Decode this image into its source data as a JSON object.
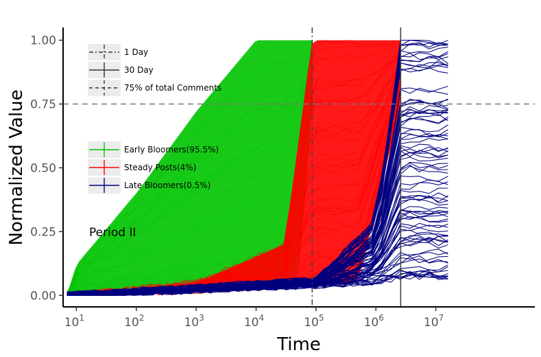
{
  "chart_data": {
    "type": "line",
    "title": "",
    "xlabel": "Time",
    "ylabel": "Normalized Value",
    "x_scale": "log",
    "xlim": [
      6,
      450000000
    ],
    "ylim": [
      -0.045,
      1.05
    ],
    "x_ticks": [
      {
        "value": 10,
        "base": "10",
        "exp": "1"
      },
      {
        "value": 100,
        "base": "10",
        "exp": "2"
      },
      {
        "value": 1000,
        "base": "10",
        "exp": "3"
      },
      {
        "value": 10000,
        "base": "10",
        "exp": "4"
      },
      {
        "value": 100000,
        "base": "10",
        "exp": "5"
      },
      {
        "value": 1000000,
        "base": "10",
        "exp": "6"
      },
      {
        "value": 10000000,
        "base": "10",
        "exp": "7"
      }
    ],
    "y_ticks": [
      {
        "value": 0,
        "label": "0.00"
      },
      {
        "value": 0.25,
        "label": "0.25"
      },
      {
        "value": 0.5,
        "label": "0.50"
      },
      {
        "value": 0.75,
        "label": "0.75"
      },
      {
        "value": 1,
        "label": "1.00"
      }
    ],
    "grid": false,
    "annotation": "Period II",
    "reference_lines": [
      {
        "orientation": "vertical",
        "x": 86400,
        "style": "dashdot",
        "label": "1 Day"
      },
      {
        "orientation": "vertical",
        "x": 2592000,
        "style": "solid",
        "label": "30 Day"
      },
      {
        "orientation": "horizontal",
        "y": 0.75,
        "style": "dashed",
        "label": "75% of total Comments"
      }
    ],
    "series": [
      {
        "name": "Early Bloomers(95.5%)",
        "color": "#00c400",
        "x": [
          7,
          10,
          100,
          1000,
          10000,
          50000,
          86400
        ],
        "y_lower": [
          0,
          0.01,
          0.02,
          0.03,
          0.04,
          0.05,
          0.75
        ],
        "y_upper": [
          0,
          0.12,
          0.4,
          0.72,
          1.0,
          1.0,
          1.0
        ]
      },
      {
        "name": "Steady Posts(4%)",
        "color": "#ff0000",
        "x": [
          7,
          1000,
          30000,
          86400,
          500000,
          2592000
        ],
        "y_lower": [
          0,
          0.02,
          0.035,
          0.04,
          0.05,
          0.75
        ],
        "y_upper": [
          0,
          0.05,
          0.2,
          1.0,
          1.0,
          1.0
        ]
      },
      {
        "name": "Late Bloomers(0.5%)",
        "color": "#00007f",
        "x": [
          7,
          100000,
          1000000,
          2592000,
          10000000,
          16000000
        ],
        "y_lower": [
          0,
          0.04,
          0.045,
          0.05,
          0.05,
          0.05
        ],
        "y_upper": [
          0,
          0.06,
          0.3,
          1.0,
          1.0,
          1.0
        ]
      }
    ]
  }
}
